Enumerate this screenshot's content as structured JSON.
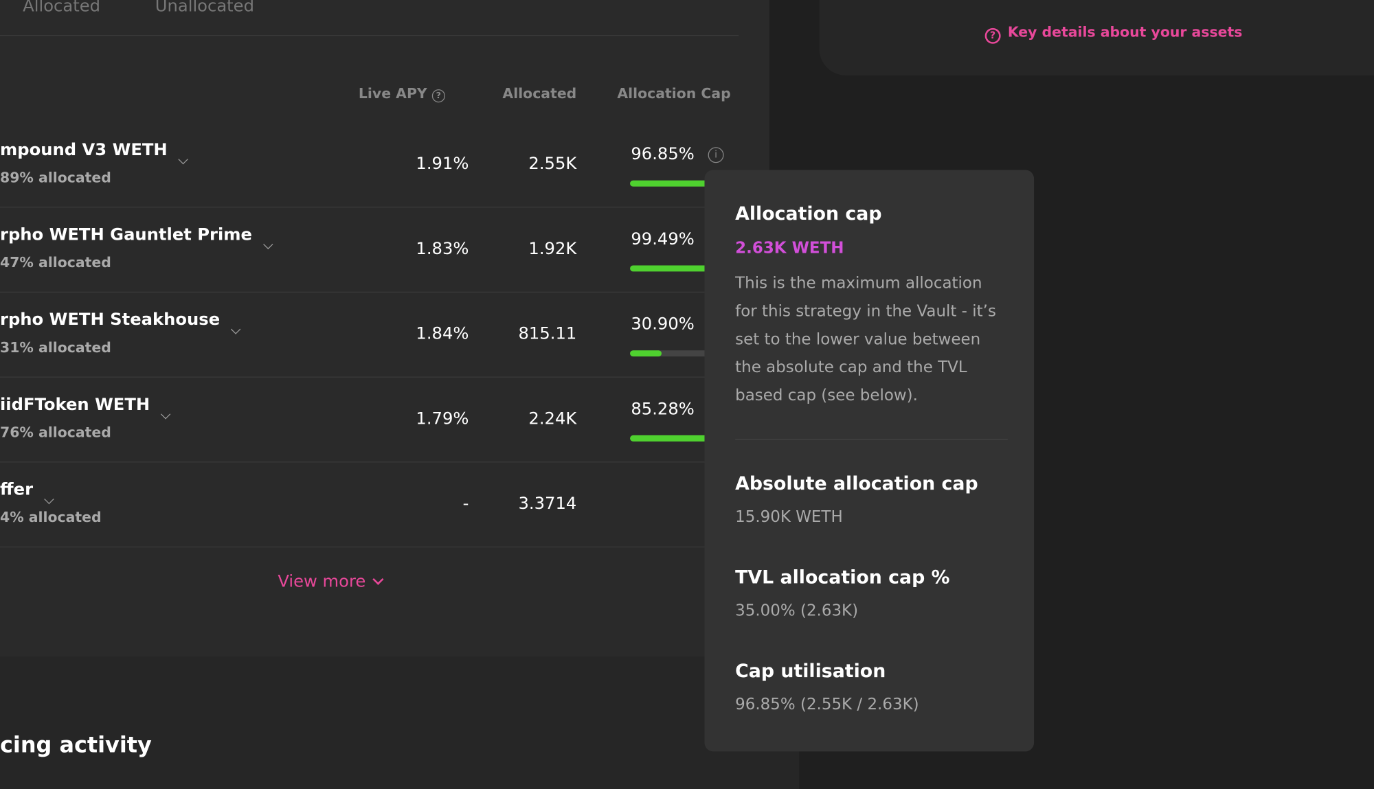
{
  "tabs": [
    "Allocated",
    "Unallocated"
  ],
  "key_details": "Key details about your assets",
  "columns": [
    "Live APY",
    "Allocated",
    "Allocation Cap"
  ],
  "rows": [
    {
      "name": "mpound V3 WETH",
      "sub": "89% allocated",
      "apy": "1.91%",
      "allocated": "2.55K",
      "cap": {
        "value": 96.85,
        "label": "96.85%"
      }
    },
    {
      "name": "rpho WETH Gauntlet Prime",
      "sub": "47% allocated",
      "apy": "1.83%",
      "allocated": "1.92K",
      "cap": {
        "value": 99.49,
        "label": "99.49%"
      }
    },
    {
      "name": "rpho WETH Steakhouse",
      "sub": "31% allocated",
      "apy": "1.84%",
      "allocated": "815.11",
      "cap": {
        "value": 30.9,
        "label": "30.90%"
      }
    },
    {
      "name": "iidFToken WETH",
      "sub": "76% allocated",
      "apy": "1.79%",
      "allocated": "2.24K",
      "cap": {
        "value": 85.28,
        "label": "85.28%"
      }
    },
    {
      "name": "ffer",
      "sub": "4% allocated",
      "apy": "-",
      "allocated": "3.3714"
    }
  ],
  "view_more": "View more",
  "section_title": "cing activity",
  "tooltip": {
    "title": "Allocation cap",
    "value": "2.63K WETH",
    "description": "This is the maximum allocation for this strategy in the Vault - it’s set to the lower value between the absolute cap and the TVL based cap (see below).",
    "items": [
      {
        "label": "Absolute allocation cap",
        "value": "15.90K WETH"
      },
      {
        "label": "TVL allocation cap %",
        "value": "35.00% (2.63K)"
      },
      {
        "label": "Cap utilisation",
        "value": "96.85% (2.55K / 2.63K)"
      }
    ]
  }
}
